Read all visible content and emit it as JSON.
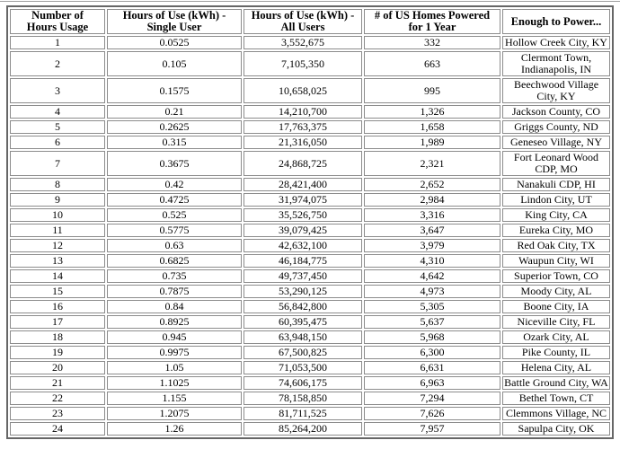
{
  "theme": {
    "background": "#ffffff",
    "text_color": "#000000",
    "top_rule_color": "#9e9e9e",
    "table_outer_border_color": "#666666",
    "table_cell_border_color": "#8c8c8c"
  },
  "chart_data": {
    "type": "table",
    "columns": [
      "Number of Hours Usage",
      "Hours of Use (kWh) - Single User",
      "Hours of Use (kWh) - All Users",
      "# of US Homes Powered for 1 Year",
      "Enough to Power..."
    ],
    "column_header_lines": [
      [
        "Number of",
        "Hours Usage"
      ],
      [
        "Hours of Use (kWh) -",
        "Single User"
      ],
      [
        "Hours of Use (kWh) -",
        "All Users"
      ],
      [
        "# of US Homes Powered",
        "for 1 Year"
      ],
      [
        "Enough to Power..."
      ]
    ],
    "rows": [
      [
        "1",
        "0.0525",
        "3,552,675",
        "332",
        "Hollow Creek City, KY"
      ],
      [
        "2",
        "0.105",
        "7,105,350",
        "663",
        "Clermont Town, Indianapolis, IN"
      ],
      [
        "3",
        "0.1575",
        "10,658,025",
        "995",
        "Beechwood Village City, KY"
      ],
      [
        "4",
        "0.21",
        "14,210,700",
        "1,326",
        "Jackson County, CO"
      ],
      [
        "5",
        "0.2625",
        "17,763,375",
        "1,658",
        "Griggs County, ND"
      ],
      [
        "6",
        "0.315",
        "21,316,050",
        "1,989",
        "Geneseo Village, NY"
      ],
      [
        "7",
        "0.3675",
        "24,868,725",
        "2,321",
        "Fort Leonard Wood CDP, MO"
      ],
      [
        "8",
        "0.42",
        "28,421,400",
        "2,652",
        "Nanakuli CDP, HI"
      ],
      [
        "9",
        "0.4725",
        "31,974,075",
        "2,984",
        "Lindon City, UT"
      ],
      [
        "10",
        "0.525",
        "35,526,750",
        "3,316",
        "King City, CA"
      ],
      [
        "11",
        "0.5775",
        "39,079,425",
        "3,647",
        "Eureka City, MO"
      ],
      [
        "12",
        "0.63",
        "42,632,100",
        "3,979",
        "Red Oak City, TX"
      ],
      [
        "13",
        "0.6825",
        "46,184,775",
        "4,310",
        "Waupun City, WI"
      ],
      [
        "14",
        "0.735",
        "49,737,450",
        "4,642",
        "Superior Town, CO"
      ],
      [
        "15",
        "0.7875",
        "53,290,125",
        "4,973",
        "Moody City, AL"
      ],
      [
        "16",
        "0.84",
        "56,842,800",
        "5,305",
        "Boone City, IA"
      ],
      [
        "17",
        "0.8925",
        "60,395,475",
        "5,637",
        "Niceville City, FL"
      ],
      [
        "18",
        "0.945",
        "63,948,150",
        "5,968",
        "Ozark City, AL"
      ],
      [
        "19",
        "0.9975",
        "67,500,825",
        "6,300",
        "Pike County, IL"
      ],
      [
        "20",
        "1.05",
        "71,053,500",
        "6,631",
        "Helena City, AL"
      ],
      [
        "21",
        "1.1025",
        "74,606,175",
        "6,963",
        "Battle Ground City, WA"
      ],
      [
        "22",
        "1.155",
        "78,158,850",
        "7,294",
        "Bethel Town, CT"
      ],
      [
        "23",
        "1.2075",
        "81,711,525",
        "7,626",
        "Clemmons Village, NC"
      ],
      [
        "24",
        "1.26",
        "85,264,200",
        "7,957",
        "Sapulpa City, OK"
      ]
    ]
  }
}
